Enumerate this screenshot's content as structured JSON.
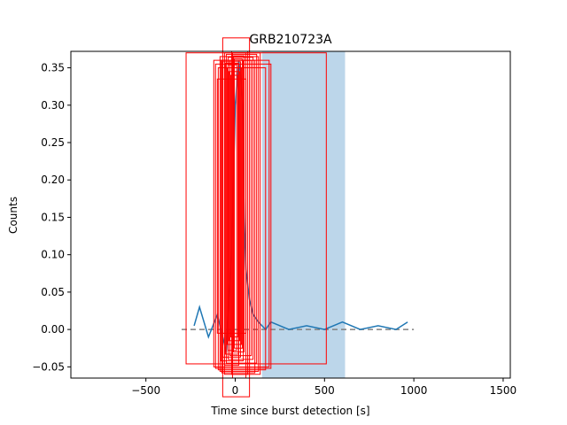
{
  "chart_data": {
    "type": "line",
    "title": "GRB210723A",
    "xlabel": "Time since burst detection [s]",
    "ylabel": "Counts",
    "xlim": [
      -920,
      1540
    ],
    "ylim": [
      -0.065,
      0.372
    ],
    "x_ticks": [
      -500,
      0,
      500,
      1000,
      1500
    ],
    "y_ticks": [
      -0.05,
      0.0,
      0.05,
      0.1,
      0.15,
      0.2,
      0.25,
      0.3,
      0.35
    ],
    "x_tick_labels": [
      "−500",
      "0",
      "500",
      "1000",
      "1500"
    ],
    "y_tick_labels": [
      "−0.05",
      "0.00",
      "0.05",
      "0.10",
      "0.15",
      "0.20",
      "0.25",
      "0.30",
      "0.35"
    ],
    "grid": false,
    "legend": "none",
    "colors": {
      "lightcurve": "#1f77b4",
      "baseline": "#808080",
      "window": "#bcd6ea",
      "boxes": "#ff0000"
    },
    "highlight_region": {
      "x": [
        150,
        615
      ]
    },
    "baseline": {
      "y": 0.0,
      "x": [
        -300,
        1000
      ],
      "style": "dashed"
    },
    "series": [
      {
        "values_description_note": "",
        "x": [
          -230,
          -200,
          -150,
          -100,
          -50,
          -20,
          0,
          10,
          20,
          30,
          40,
          50,
          60,
          80,
          100,
          130,
          170,
          200,
          300,
          400,
          500,
          600,
          700,
          800,
          900,
          965
        ],
        "y": [
          0.005,
          0.03,
          -0.01,
          0.02,
          -0.03,
          0.1,
          0.3,
          0.33,
          0.36,
          0.34,
          0.3,
          0.15,
          0.08,
          0.04,
          0.02,
          0.01,
          0.0,
          0.01,
          0.0,
          0.005,
          0.0,
          0.01,
          0.0,
          0.005,
          0.0,
          0.01
        ]
      }
    ],
    "boxes": [
      {
        "x": [
          -275,
          510
        ],
        "y": [
          -0.046,
          0.37
        ]
      },
      {
        "x": [
          -70,
          80
        ],
        "y": [
          -0.09,
          0.39
        ]
      },
      {
        "x": [
          -120,
          190
        ],
        "y": [
          -0.05,
          0.36
        ]
      },
      {
        "x": [
          -110,
          200
        ],
        "y": [
          -0.052,
          0.355
        ]
      },
      {
        "x": [
          -95,
          170
        ],
        "y": [
          -0.054,
          0.35
        ]
      },
      {
        "x": [
          -85,
          130
        ],
        "y": [
          -0.056,
          0.365
        ]
      },
      {
        "x": [
          -75,
          110
        ],
        "y": [
          -0.058,
          0.36
        ]
      },
      {
        "x": [
          -60,
          140
        ],
        "y": [
          -0.06,
          0.37
        ]
      },
      {
        "x": [
          -50,
          120
        ],
        "y": [
          -0.045,
          0.368
        ]
      },
      {
        "x": [
          -40,
          100
        ],
        "y": [
          -0.04,
          0.364
        ]
      },
      {
        "x": [
          -30,
          90
        ],
        "y": [
          -0.035,
          0.36
        ]
      },
      {
        "x": [
          -20,
          70
        ],
        "y": [
          -0.06,
          0.372
        ]
      },
      {
        "x": [
          -15,
          60
        ],
        "y": [
          -0.065,
          0.37
        ]
      },
      {
        "x": [
          -10,
          50
        ],
        "y": [
          -0.03,
          0.366
        ]
      },
      {
        "x": [
          -5,
          40
        ],
        "y": [
          -0.025,
          0.362
        ]
      },
      {
        "x": [
          -60,
          20
        ],
        "y": [
          -0.048,
          0.355
        ]
      },
      {
        "x": [
          -45,
          35
        ],
        "y": [
          -0.02,
          0.35
        ]
      },
      {
        "x": [
          -35,
          25
        ],
        "y": [
          -0.015,
          0.345
        ]
      },
      {
        "x": [
          -25,
          15
        ],
        "y": [
          -0.01,
          0.34
        ]
      },
      {
        "x": [
          -100,
          60
        ],
        "y": [
          -0.005,
          0.335
        ]
      },
      {
        "x": [
          -80,
          45
        ],
        "y": [
          -0.042,
          0.36
        ]
      },
      {
        "x": [
          -70,
          30
        ],
        "y": [
          -0.037,
          0.358
        ]
      },
      {
        "x": [
          -55,
          18
        ],
        "y": [
          -0.033,
          0.356
        ]
      },
      {
        "x": [
          -40,
          8
        ],
        "y": [
          -0.028,
          0.354
        ]
      }
    ]
  }
}
